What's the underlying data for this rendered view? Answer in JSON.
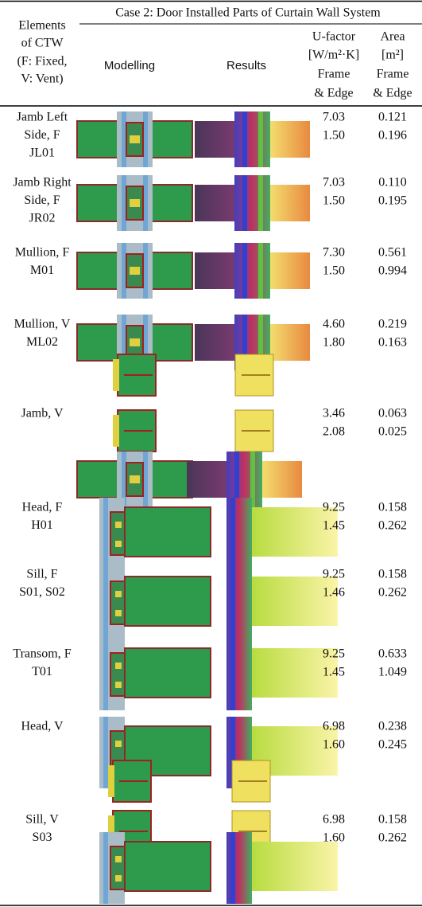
{
  "header": {
    "title": "Case 2: Door Installed Parts of Curtain Wall System",
    "columns": {
      "elements": [
        "Elements",
        "of CTW",
        "(F: Fixed,",
        "V: Vent)"
      ],
      "modelling": "Modelling",
      "results": "Results",
      "u_factor": [
        "U-factor",
        "[W/m²·K]",
        "Frame",
        "& Edge"
      ],
      "area": [
        "Area",
        "[m²]",
        "Frame",
        "& Edge"
      ]
    }
  },
  "table": {
    "rows": [
      {
        "element": [
          "Jamb Left",
          "Side, F",
          "JL01"
        ],
        "u_factor": [
          "7.03",
          "1.50"
        ],
        "area": [
          "0.121",
          "0.196"
        ]
      },
      {
        "element": [
          "Jamb Right",
          "Side, F",
          "JR02"
        ],
        "u_factor": [
          "7.03",
          "1.50"
        ],
        "area": [
          "0.110",
          "0.195"
        ]
      },
      {
        "element": [
          "Mullion, F",
          "M01"
        ],
        "u_factor": [
          "7.30",
          "1.50"
        ],
        "area": [
          "0.561",
          "0.994"
        ]
      },
      {
        "element": [
          "Mullion, V",
          "ML02"
        ],
        "u_factor": [
          "4.60",
          "1.80"
        ],
        "area": [
          "0.219",
          "0.163"
        ]
      },
      {
        "element": [
          "Jamb, V"
        ],
        "u_factor": [
          "3.46",
          "2.08"
        ],
        "area": [
          "0.063",
          "0.025"
        ]
      },
      {
        "element": [
          "Head, F",
          "H01"
        ],
        "u_factor": [
          "9.25",
          "1.45"
        ],
        "area": [
          "0.158",
          "0.262"
        ]
      },
      {
        "element": [
          "Sill, F",
          "S01, S02"
        ],
        "u_factor": [
          "9.25",
          "1.46"
        ],
        "area": [
          "0.158",
          "0.262"
        ]
      },
      {
        "element": [
          "Transom, F",
          "T01"
        ],
        "u_factor": [
          "9.25",
          "1.45"
        ],
        "area": [
          "0.633",
          "1.049"
        ]
      },
      {
        "element": [
          "Head, V"
        ],
        "u_factor": [
          "6.98",
          "1.60"
        ],
        "area": [
          "0.238",
          "0.245"
        ]
      },
      {
        "element": [
          "Sill, V",
          "S03"
        ],
        "u_factor": [
          "6.98",
          "1.60"
        ],
        "area": [
          "0.158",
          "0.262"
        ]
      }
    ]
  }
}
